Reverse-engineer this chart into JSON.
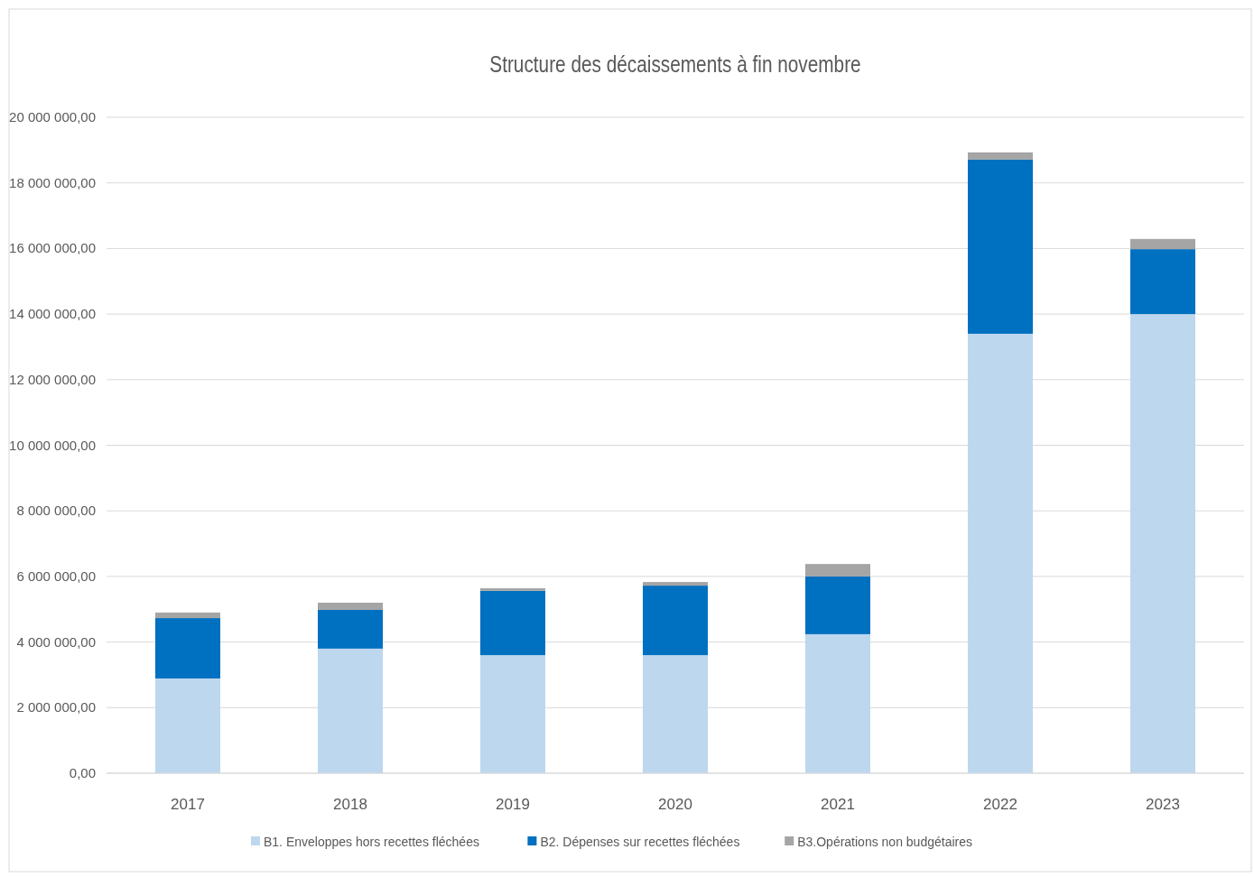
{
  "chart_data": {
    "type": "bar",
    "title": "Structure des décaissements à fin novembre",
    "stacked": true,
    "categories": [
      "2017",
      "2018",
      "2019",
      "2020",
      "2021",
      "2022",
      "2023"
    ],
    "series": [
      {
        "name": "B1. Enveloppes hors recettes fléchées",
        "color": "#bdd7ee",
        "values": [
          2890000.0,
          3800000.0,
          3600000.0,
          3600000.0,
          4240000.0,
          13400000.0,
          14000000.0
        ]
      },
      {
        "name": "B2. Dépenses sur recettes fléchées",
        "color": "#0070c0",
        "values": [
          1840000.0,
          1180000.0,
          1960000.0,
          2120000.0,
          1760000.0,
          5310000.0,
          1980000.0
        ]
      },
      {
        "name": "B3.Opérations non budgétaires",
        "color": "#a5a5a5",
        "values": [
          170000.0,
          220000.0,
          80000.0,
          110000.0,
          380000.0,
          220000.0,
          310000.0
        ]
      }
    ],
    "ylim": [
      0,
      20000000
    ],
    "yticks": [
      {
        "value": 0,
        "label": "0,00"
      },
      {
        "value": 2000000,
        "label": "2 000 000,00"
      },
      {
        "value": 4000000,
        "label": "4 000 000,00"
      },
      {
        "value": 6000000,
        "label": "6 000 000,00"
      },
      {
        "value": 8000000,
        "label": "8 000 000,00"
      },
      {
        "value": 10000000,
        "label": "10 000 000,00"
      },
      {
        "value": 12000000,
        "label": "12 000 000,00"
      },
      {
        "value": 14000000,
        "label": "14 000 000,00"
      },
      {
        "value": 16000000,
        "label": "16 000 000,00"
      },
      {
        "value": 18000000,
        "label": "18 000 000,00"
      },
      {
        "value": 20000000,
        "label": "20 000 000,00"
      }
    ],
    "grid": "y",
    "legend": "bottom"
  }
}
